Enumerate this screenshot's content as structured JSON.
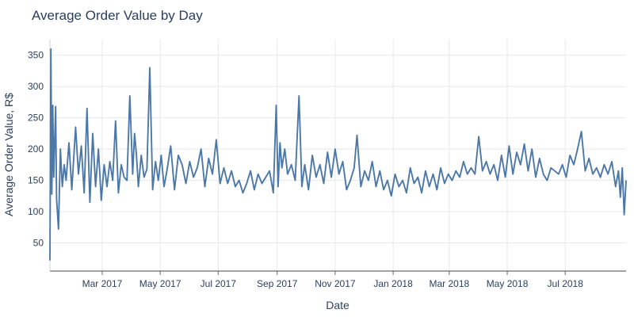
{
  "chart_data": {
    "type": "line",
    "title": "Average Order Value by Day",
    "xlabel": "Date",
    "ylabel": "Average Order Value, R$",
    "grid": true,
    "legend": "none",
    "xlim": [
      "2017-01-05",
      "2018-09-03"
    ],
    "ylim": [
      5,
      375
    ],
    "x_ticks": [
      {
        "date": "2017-03-01",
        "label": "Mar 2017"
      },
      {
        "date": "2017-05-01",
        "label": "May 2017"
      },
      {
        "date": "2017-07-01",
        "label": "Jul 2017"
      },
      {
        "date": "2017-09-01",
        "label": "Sep 2017"
      },
      {
        "date": "2017-11-01",
        "label": "Nov 2017"
      },
      {
        "date": "2018-01-01",
        "label": "Jan 2018"
      },
      {
        "date": "2018-03-01",
        "label": "Mar 2018"
      },
      {
        "date": "2018-05-01",
        "label": "May 2018"
      },
      {
        "date": "2018-07-01",
        "label": "Jul 2018"
      }
    ],
    "y_ticks": [
      50,
      100,
      150,
      200,
      250,
      300,
      350
    ],
    "series": [
      {
        "color": "#4c78a8",
        "x": [
          "2017-01-05",
          "2017-01-06",
          "2017-01-07",
          "2017-01-08",
          "2017-01-09",
          "2017-01-11",
          "2017-01-12",
          "2017-01-14",
          "2017-01-16",
          "2017-01-18",
          "2017-01-20",
          "2017-01-22",
          "2017-01-25",
          "2017-01-28",
          "2017-02-01",
          "2017-02-04",
          "2017-02-07",
          "2017-02-10",
          "2017-02-13",
          "2017-02-16",
          "2017-02-19",
          "2017-02-22",
          "2017-02-25",
          "2017-02-28",
          "2017-03-03",
          "2017-03-06",
          "2017-03-09",
          "2017-03-12",
          "2017-03-15",
          "2017-03-18",
          "2017-03-21",
          "2017-03-24",
          "2017-03-27",
          "2017-03-30",
          "2017-04-02",
          "2017-04-04",
          "2017-04-06",
          "2017-04-08",
          "2017-04-11",
          "2017-04-14",
          "2017-04-17",
          "2017-04-20",
          "2017-04-23",
          "2017-04-26",
          "2017-04-29",
          "2017-05-02",
          "2017-05-05",
          "2017-05-08",
          "2017-05-12",
          "2017-05-16",
          "2017-05-20",
          "2017-05-24",
          "2017-05-28",
          "2017-06-01",
          "2017-06-05",
          "2017-06-09",
          "2017-06-13",
          "2017-06-17",
          "2017-06-21",
          "2017-06-25",
          "2017-06-29",
          "2017-07-03",
          "2017-07-07",
          "2017-07-11",
          "2017-07-15",
          "2017-07-19",
          "2017-07-23",
          "2017-07-27",
          "2017-07-31",
          "2017-08-04",
          "2017-08-08",
          "2017-08-12",
          "2017-08-16",
          "2017-08-20",
          "2017-08-24",
          "2017-08-28",
          "2017-08-31",
          "2017-09-02",
          "2017-09-04",
          "2017-09-06",
          "2017-09-09",
          "2017-09-12",
          "2017-09-16",
          "2017-09-20",
          "2017-09-24",
          "2017-09-27",
          "2017-09-30",
          "2017-10-04",
          "2017-10-08",
          "2017-10-12",
          "2017-10-16",
          "2017-10-20",
          "2017-10-24",
          "2017-10-28",
          "2017-11-01",
          "2017-11-05",
          "2017-11-09",
          "2017-11-13",
          "2017-11-17",
          "2017-11-21",
          "2017-11-24",
          "2017-11-28",
          "2017-12-02",
          "2017-12-06",
          "2017-12-10",
          "2017-12-14",
          "2017-12-18",
          "2017-12-22",
          "2017-12-26",
          "2017-12-30",
          "2018-01-03",
          "2018-01-07",
          "2018-01-11",
          "2018-01-15",
          "2018-01-19",
          "2018-01-23",
          "2018-01-27",
          "2018-01-31",
          "2018-02-04",
          "2018-02-08",
          "2018-02-12",
          "2018-02-16",
          "2018-02-20",
          "2018-02-24",
          "2018-02-28",
          "2018-03-04",
          "2018-03-08",
          "2018-03-12",
          "2018-03-16",
          "2018-03-20",
          "2018-03-24",
          "2018-03-28",
          "2018-04-01",
          "2018-04-05",
          "2018-04-09",
          "2018-04-13",
          "2018-04-17",
          "2018-04-21",
          "2018-04-25",
          "2018-04-29",
          "2018-05-03",
          "2018-05-07",
          "2018-05-11",
          "2018-05-15",
          "2018-05-19",
          "2018-05-23",
          "2018-05-27",
          "2018-05-31",
          "2018-06-04",
          "2018-06-08",
          "2018-06-12",
          "2018-06-16",
          "2018-06-20",
          "2018-06-24",
          "2018-06-28",
          "2018-07-02",
          "2018-07-06",
          "2018-07-10",
          "2018-07-14",
          "2018-07-18",
          "2018-07-22",
          "2018-07-26",
          "2018-07-30",
          "2018-08-03",
          "2018-08-07",
          "2018-08-11",
          "2018-08-15",
          "2018-08-19",
          "2018-08-23",
          "2018-08-26",
          "2018-08-28",
          "2018-08-30",
          "2018-09-01",
          "2018-09-03"
        ],
        "y": [
          22,
          360,
          128,
          270,
          155,
          268,
          120,
          72,
          200,
          140,
          175,
          150,
          210,
          135,
          235,
          160,
          205,
          130,
          265,
          115,
          225,
          140,
          200,
          118,
          175,
          140,
          180,
          150,
          245,
          130,
          175,
          155,
          150,
          285,
          160,
          225,
          190,
          140,
          190,
          155,
          168,
          330,
          135,
          180,
          150,
          190,
          140,
          165,
          205,
          135,
          190,
          175,
          145,
          180,
          155,
          170,
          200,
          140,
          185,
          160,
          215,
          145,
          170,
          145,
          165,
          140,
          150,
          130,
          145,
          165,
          135,
          160,
          145,
          155,
          165,
          130,
          270,
          140,
          210,
          170,
          200,
          160,
          175,
          150,
          285,
          140,
          175,
          135,
          190,
          155,
          175,
          145,
          195,
          155,
          200,
          160,
          180,
          135,
          150,
          170,
          222,
          140,
          165,
          150,
          180,
          140,
          165,
          135,
          150,
          125,
          160,
          140,
          150,
          130,
          170,
          145,
          155,
          130,
          165,
          140,
          160,
          135,
          170,
          145,
          160,
          150,
          165,
          155,
          180,
          160,
          170,
          160,
          220,
          165,
          180,
          160,
          175,
          150,
          190,
          155,
          205,
          160,
          195,
          175,
          208,
          165,
          200,
          155,
          185,
          160,
          150,
          170,
          165,
          160,
          175,
          155,
          190,
          175,
          200,
          228,
          165,
          185,
          160,
          170,
          155,
          175,
          160,
          180,
          140,
          165,
          123,
          170,
          95,
          150
        ]
      }
    ]
  }
}
